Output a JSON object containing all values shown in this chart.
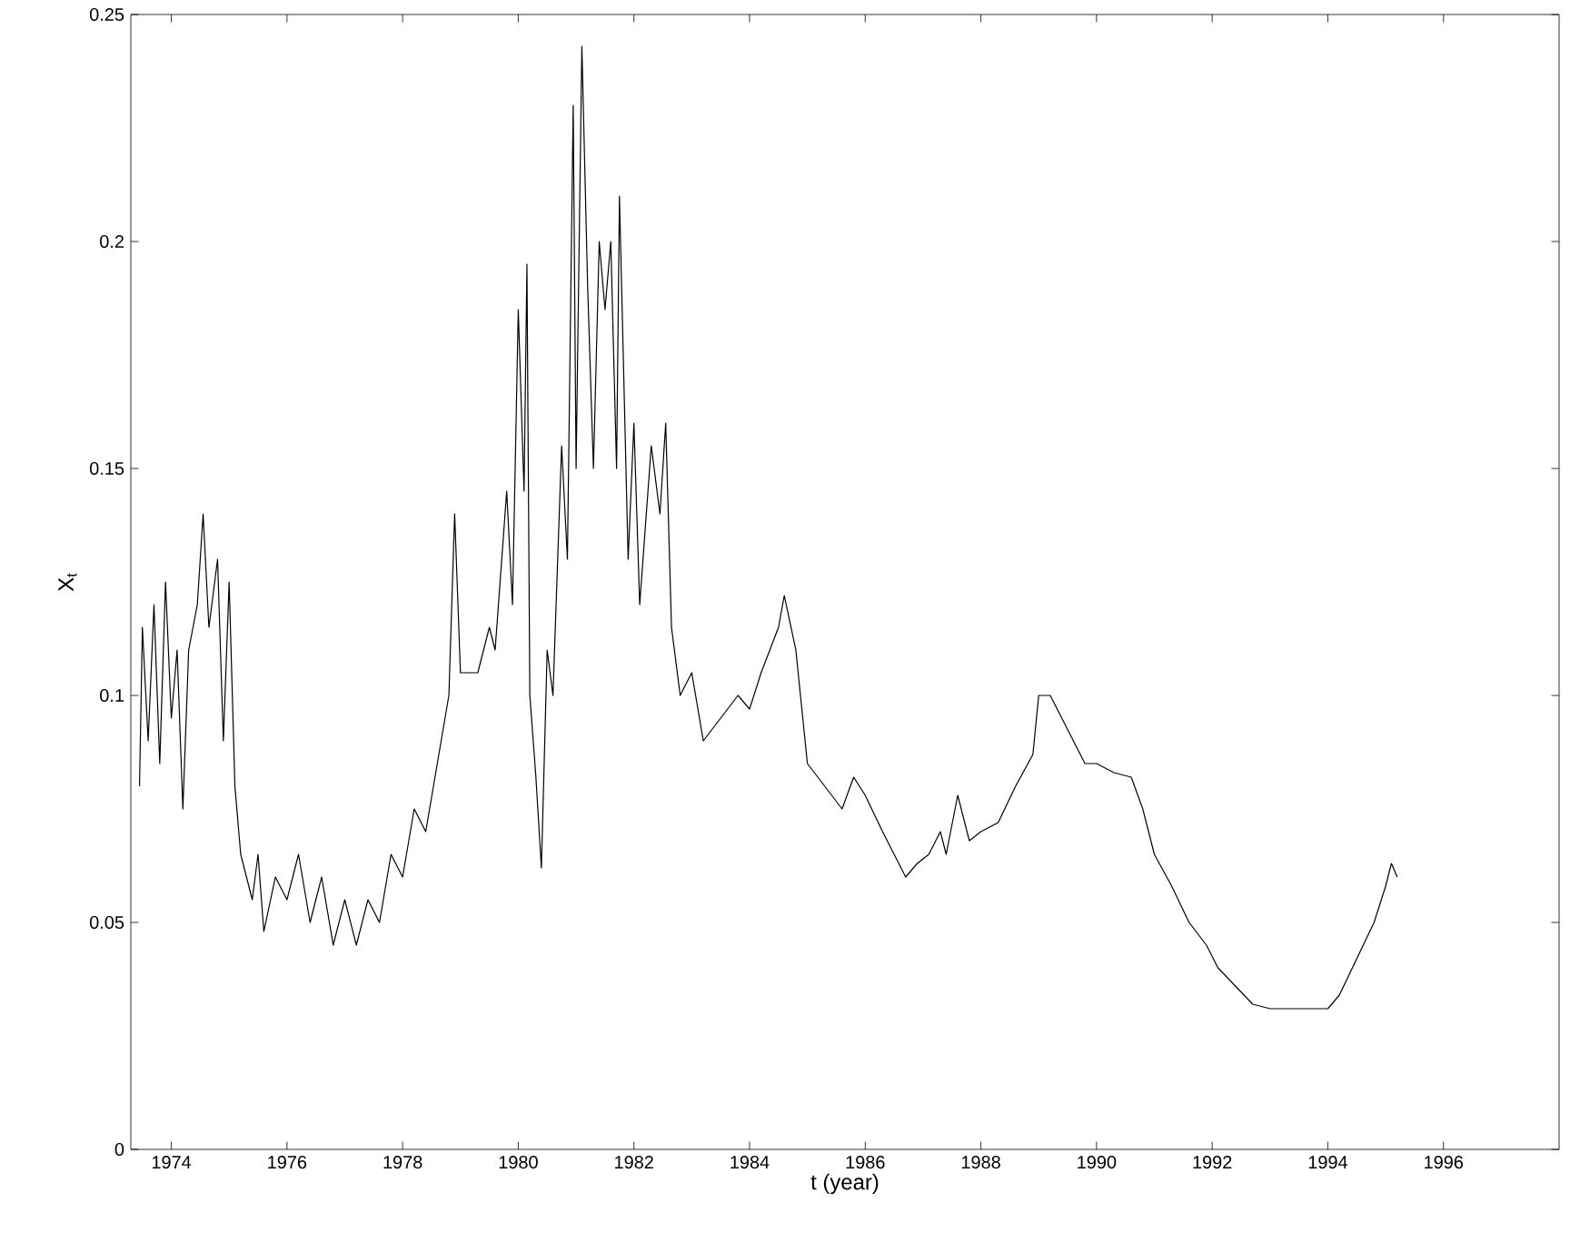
{
  "chart_data": {
    "type": "line",
    "xlabel": "t (year)",
    "ylabel": "X$_{t}$",
    "xlim": [
      1973.3,
      1998
    ],
    "xticks": [
      1974,
      1976,
      1978,
      1980,
      1982,
      1984,
      1986,
      1988,
      1990,
      1992,
      1994,
      1996
    ],
    "ylim": [
      0,
      0.25
    ],
    "yticks": [
      0,
      0.05,
      0.1,
      0.15,
      0.2,
      0.25
    ],
    "grid": false,
    "marker": "none",
    "line_style": "solid",
    "series": [
      {
        "color": "#000000",
        "x": [
          1973.45,
          1973.5,
          1973.6,
          1973.7,
          1973.8,
          1973.9,
          1974.0,
          1974.1,
          1974.2,
          1974.3,
          1974.45,
          1974.55,
          1974.65,
          1974.8,
          1974.9,
          1975.0,
          1975.1,
          1975.2,
          1975.4,
          1975.5,
          1975.6,
          1975.8,
          1976.0,
          1976.2,
          1976.4,
          1976.6,
          1976.8,
          1977.0,
          1977.2,
          1977.4,
          1977.6,
          1977.8,
          1978.0,
          1978.2,
          1978.4,
          1978.6,
          1978.8,
          1978.9,
          1979.0,
          1979.3,
          1979.5,
          1979.6,
          1979.8,
          1979.9,
          1980.0,
          1980.1,
          1980.15,
          1980.2,
          1980.3,
          1980.4,
          1980.5,
          1980.6,
          1980.75,
          1980.85,
          1980.95,
          1981.0,
          1981.1,
          1981.2,
          1981.3,
          1981.4,
          1981.5,
          1981.6,
          1981.7,
          1981.75,
          1981.9,
          1982.0,
          1982.1,
          1982.3,
          1982.45,
          1982.55,
          1982.65,
          1982.8,
          1983.0,
          1983.2,
          1983.5,
          1983.8,
          1984.0,
          1984.2,
          1984.5,
          1984.6,
          1984.8,
          1985.0,
          1985.3,
          1985.6,
          1985.8,
          1986.0,
          1986.3,
          1986.5,
          1986.7,
          1986.9,
          1987.1,
          1987.3,
          1987.4,
          1987.6,
          1987.8,
          1988.0,
          1988.3,
          1988.6,
          1988.9,
          1989.0,
          1989.2,
          1989.4,
          1989.6,
          1989.8,
          1990.0,
          1990.3,
          1990.6,
          1990.8,
          1991.0,
          1991.3,
          1991.6,
          1991.9,
          1992.1,
          1992.4,
          1992.7,
          1993.0,
          1993.5,
          1994.0,
          1994.2,
          1994.5,
          1994.8,
          1995.0,
          1995.1,
          1995.2
        ],
        "values": [
          0.08,
          0.115,
          0.09,
          0.12,
          0.085,
          0.125,
          0.095,
          0.11,
          0.075,
          0.11,
          0.12,
          0.14,
          0.115,
          0.13,
          0.09,
          0.125,
          0.08,
          0.065,
          0.055,
          0.065,
          0.048,
          0.06,
          0.055,
          0.065,
          0.05,
          0.06,
          0.045,
          0.055,
          0.045,
          0.055,
          0.05,
          0.065,
          0.06,
          0.075,
          0.07,
          0.085,
          0.1,
          0.14,
          0.105,
          0.105,
          0.115,
          0.11,
          0.145,
          0.12,
          0.185,
          0.145,
          0.195,
          0.1,
          0.083,
          0.062,
          0.11,
          0.1,
          0.155,
          0.13,
          0.23,
          0.15,
          0.243,
          0.19,
          0.15,
          0.2,
          0.185,
          0.2,
          0.15,
          0.21,
          0.13,
          0.16,
          0.12,
          0.155,
          0.14,
          0.16,
          0.115,
          0.1,
          0.105,
          0.09,
          0.095,
          0.1,
          0.097,
          0.105,
          0.115,
          0.122,
          0.11,
          0.085,
          0.08,
          0.075,
          0.082,
          0.078,
          0.07,
          0.065,
          0.06,
          0.063,
          0.065,
          0.07,
          0.065,
          0.078,
          0.068,
          0.07,
          0.072,
          0.08,
          0.087,
          0.1,
          0.1,
          0.095,
          0.09,
          0.085,
          0.085,
          0.083,
          0.082,
          0.075,
          0.065,
          0.058,
          0.05,
          0.045,
          0.04,
          0.036,
          0.032,
          0.031,
          0.031,
          0.031,
          0.034,
          0.042,
          0.05,
          0.058,
          0.063,
          0.06
        ]
      }
    ]
  }
}
